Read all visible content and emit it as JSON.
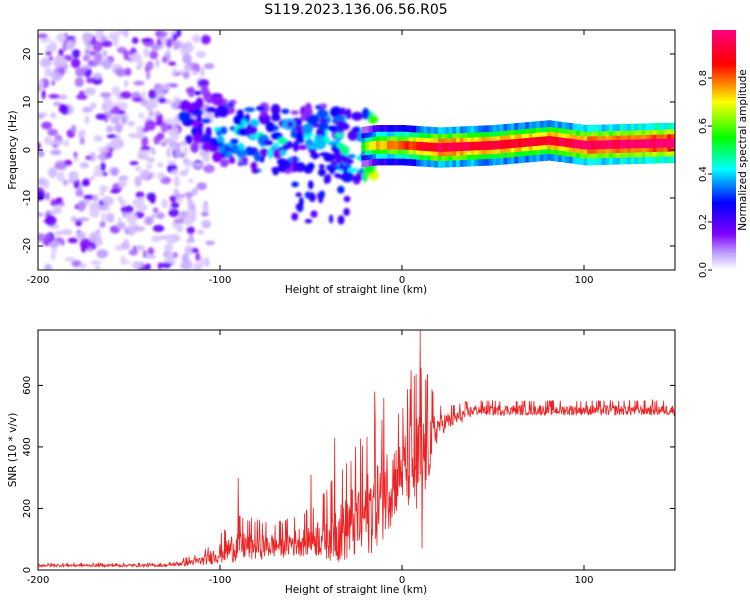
{
  "figure": {
    "title": "S119.2023.136.06.56.R05"
  },
  "chart_data": [
    {
      "type": "heatmap",
      "xlabel": "Height of straight line (km)",
      "ylabel": "Frequency (Hz)",
      "xlim": [
        -200,
        150
      ],
      "ylim": [
        -25,
        25
      ],
      "x_ticks": [
        -200,
        -100,
        0,
        100
      ],
      "x_tick_labels": [
        "-200",
        "-100",
        "0",
        "100"
      ],
      "y_ticks": [
        -20,
        -10,
        0,
        10,
        20
      ],
      "y_tick_labels": [
        "-20",
        "-10",
        "0",
        "10",
        "20"
      ],
      "colorbar": {
        "label": "Normalized spectral amplitude",
        "range": [
          0,
          1
        ],
        "ticks": [
          0.0,
          0.2,
          0.4,
          0.6,
          0.8
        ],
        "tick_labels": [
          "0.0",
          "0.2",
          "0.4",
          "0.6",
          "0.8"
        ],
        "colormap": [
          "#ffffff",
          "#8000ff",
          "#0000ff",
          "#00ffff",
          "#00ff00",
          "#ffff00",
          "#ff0000",
          "#ff0080"
        ]
      },
      "ridge": [
        {
          "x": -115,
          "y": 7,
          "amp": 0.3
        },
        {
          "x": -100,
          "y": 4,
          "amp": 0.4
        },
        {
          "x": -85,
          "y": 2,
          "amp": 0.45
        },
        {
          "x": -70,
          "y": 2,
          "amp": 0.45
        },
        {
          "x": -55,
          "y": 3,
          "amp": 0.4
        },
        {
          "x": -40,
          "y": 2,
          "amp": 0.45
        },
        {
          "x": -25,
          "y": 0.5,
          "amp": 0.5
        },
        {
          "x": -15,
          "y": 1,
          "amp": 0.75
        },
        {
          "x": 0,
          "y": 1,
          "amp": 0.8
        },
        {
          "x": 20,
          "y": 0.5,
          "amp": 0.95
        },
        {
          "x": 50,
          "y": 1,
          "amp": 0.9
        },
        {
          "x": 80,
          "y": 2,
          "amp": 0.9
        },
        {
          "x": 100,
          "y": 1,
          "amp": 0.95
        },
        {
          "x": 150,
          "y": 1.5,
          "amp": 1.0
        }
      ]
    },
    {
      "type": "line",
      "xlabel": "Height of straight line (km)",
      "ylabel": "SNR (10 * v/v)",
      "xlim": [
        -200,
        150
      ],
      "ylim": [
        0,
        780
      ],
      "x_ticks": [
        -200,
        -100,
        0,
        100
      ],
      "x_tick_labels": [
        "-200",
        "-100",
        "0",
        "100"
      ],
      "y_ticks": [
        0,
        200,
        400,
        600
      ],
      "y_tick_labels": [
        "0",
        "200",
        "400",
        "600"
      ],
      "color": "#ee2222",
      "envelope": [
        {
          "x": -200,
          "base": 15,
          "amp": 8
        },
        {
          "x": -130,
          "base": 15,
          "amp": 8
        },
        {
          "x": -110,
          "base": 30,
          "amp": 25
        },
        {
          "x": -90,
          "base": 80,
          "amp": 90
        },
        {
          "x": -70,
          "base": 80,
          "amp": 70
        },
        {
          "x": -50,
          "base": 100,
          "amp": 90
        },
        {
          "x": -35,
          "base": 130,
          "amp": 180
        },
        {
          "x": -20,
          "base": 180,
          "amp": 250
        },
        {
          "x": -10,
          "base": 250,
          "amp": 250
        },
        {
          "x": 0,
          "base": 330,
          "amp": 200
        },
        {
          "x": 10,
          "base": 350,
          "amp": 330
        },
        {
          "x": 20,
          "base": 470,
          "amp": 60
        },
        {
          "x": 40,
          "base": 520,
          "amp": 30
        },
        {
          "x": 150,
          "base": 520,
          "amp": 30
        }
      ],
      "spikes": [
        {
          "x": -90,
          "y": 300
        },
        {
          "x": -50,
          "y": 310
        },
        {
          "x": -37,
          "y": 430
        },
        {
          "x": -15,
          "y": 580
        },
        {
          "x": -10,
          "y": 560
        },
        {
          "x": 5,
          "y": 650
        },
        {
          "x": 10,
          "y": 780
        },
        {
          "x": 11,
          "y": 70
        },
        {
          "x": 8,
          "y": 200
        }
      ]
    }
  ]
}
